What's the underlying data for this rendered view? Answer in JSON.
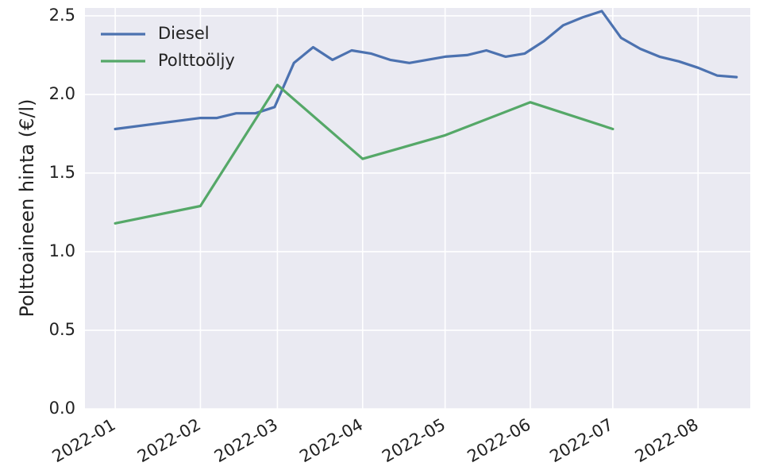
{
  "chart_data": {
    "type": "line",
    "title": "",
    "xlabel": "",
    "ylabel": "Polttoaineen hinta (€/l)",
    "x_ticks": [
      "2022-01",
      "2022-02",
      "2022-03",
      "2022-04",
      "2022-05",
      "2022-06",
      "2022-07",
      "2022-08"
    ],
    "y_ticks": [
      "0.0",
      "0.5",
      "1.0",
      "1.5",
      "2.0",
      "2.5"
    ],
    "ylim": [
      0,
      2.55
    ],
    "xlim": [
      "2021-12-21",
      "2022-08-20"
    ],
    "grid": true,
    "legend_position": "top-left",
    "background_color": "#eaeaf2",
    "series": [
      {
        "name": "Diesel",
        "color": "#4c72b0",
        "points": [
          {
            "x": "2022-01-01",
            "y": 1.78
          },
          {
            "x": "2022-02-01",
            "y": 1.85
          },
          {
            "x": "2022-02-07",
            "y": 1.85
          },
          {
            "x": "2022-02-14",
            "y": 1.88
          },
          {
            "x": "2022-02-21",
            "y": 1.88
          },
          {
            "x": "2022-02-28",
            "y": 1.92
          },
          {
            "x": "2022-03-07",
            "y": 2.2
          },
          {
            "x": "2022-03-14",
            "y": 2.3
          },
          {
            "x": "2022-03-21",
            "y": 2.22
          },
          {
            "x": "2022-03-28",
            "y": 2.28
          },
          {
            "x": "2022-04-04",
            "y": 2.26
          },
          {
            "x": "2022-04-11",
            "y": 2.22
          },
          {
            "x": "2022-04-18",
            "y": 2.2
          },
          {
            "x": "2022-05-01",
            "y": 2.24
          },
          {
            "x": "2022-05-09",
            "y": 2.25
          },
          {
            "x": "2022-05-16",
            "y": 2.28
          },
          {
            "x": "2022-05-23",
            "y": 2.24
          },
          {
            "x": "2022-05-30",
            "y": 2.26
          },
          {
            "x": "2022-06-06",
            "y": 2.34
          },
          {
            "x": "2022-06-13",
            "y": 2.44
          },
          {
            "x": "2022-06-20",
            "y": 2.49
          },
          {
            "x": "2022-06-27",
            "y": 2.53
          },
          {
            "x": "2022-07-04",
            "y": 2.36
          },
          {
            "x": "2022-07-11",
            "y": 2.29
          },
          {
            "x": "2022-07-18",
            "y": 2.24
          },
          {
            "x": "2022-07-25",
            "y": 2.21
          },
          {
            "x": "2022-08-01",
            "y": 2.17
          },
          {
            "x": "2022-08-08",
            "y": 2.12
          },
          {
            "x": "2022-08-15",
            "y": 2.11
          }
        ]
      },
      {
        "name": "Polttoöljy",
        "color": "#55a868",
        "points": [
          {
            "x": "2022-01-01",
            "y": 1.18
          },
          {
            "x": "2022-02-01",
            "y": 1.29
          },
          {
            "x": "2022-03-01",
            "y": 2.06
          },
          {
            "x": "2022-04-01",
            "y": 1.59
          },
          {
            "x": "2022-05-01",
            "y": 1.74
          },
          {
            "x": "2022-06-01",
            "y": 1.95
          },
          {
            "x": "2022-07-01",
            "y": 1.78
          }
        ]
      }
    ]
  }
}
